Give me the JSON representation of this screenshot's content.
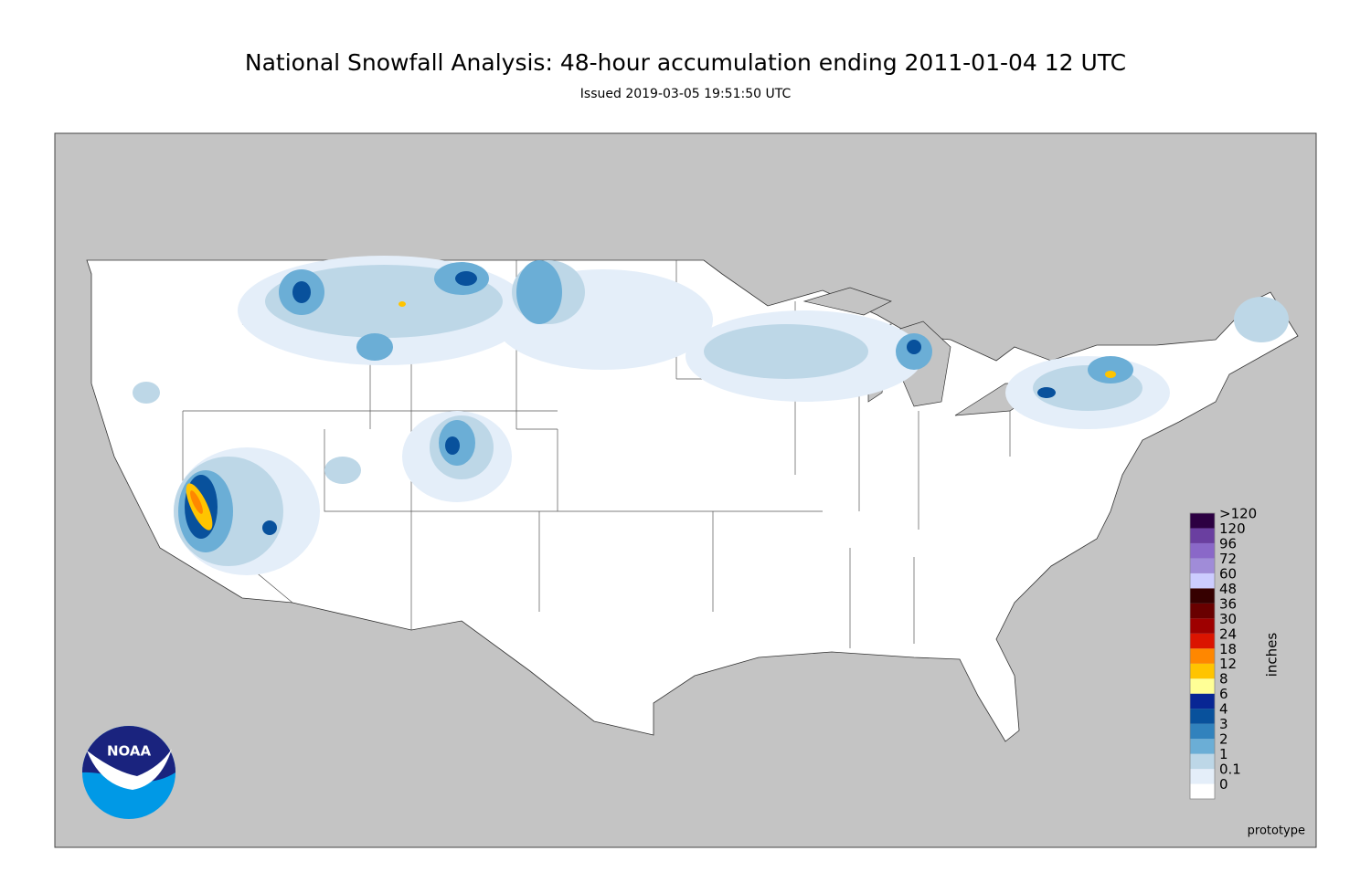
{
  "header": {
    "title": "National Snowfall Analysis: 48-hour accumulation ending 2011-01-04 12 UTC",
    "subtitle": "Issued 2019-03-05 19:51:50 UTC"
  },
  "legend": {
    "unit": "inches",
    "levels": [
      {
        "label": "0",
        "color": "#ffffff"
      },
      {
        "label": "0.1",
        "color": "#e4eef9"
      },
      {
        "label": "1",
        "color": "#bdd7e7"
      },
      {
        "label": "2",
        "color": "#6baed6"
      },
      {
        "label": "3",
        "color": "#3182bd"
      },
      {
        "label": "4",
        "color": "#08519c"
      },
      {
        "label": "6",
        "color": "#082694"
      },
      {
        "label": "8",
        "color": "#ffff96"
      },
      {
        "label": "12",
        "color": "#ffc400"
      },
      {
        "label": "18",
        "color": "#ff8700"
      },
      {
        "label": "24",
        "color": "#db1400"
      },
      {
        "label": "30",
        "color": "#9e0000"
      },
      {
        "label": "36",
        "color": "#690000"
      },
      {
        "label": "48",
        "color": "#360000"
      },
      {
        "label": "60",
        "color": "#ccccff"
      },
      {
        "label": "72",
        "color": "#a08cd8"
      },
      {
        "label": "96",
        "color": "#8a68c8"
      },
      {
        "label": "120",
        "color": "#6a3fa0"
      },
      {
        "label": ">120",
        "color": "#2c0042"
      }
    ]
  },
  "logo": {
    "text": "NOAA"
  },
  "footer": {
    "note": "prototype"
  }
}
